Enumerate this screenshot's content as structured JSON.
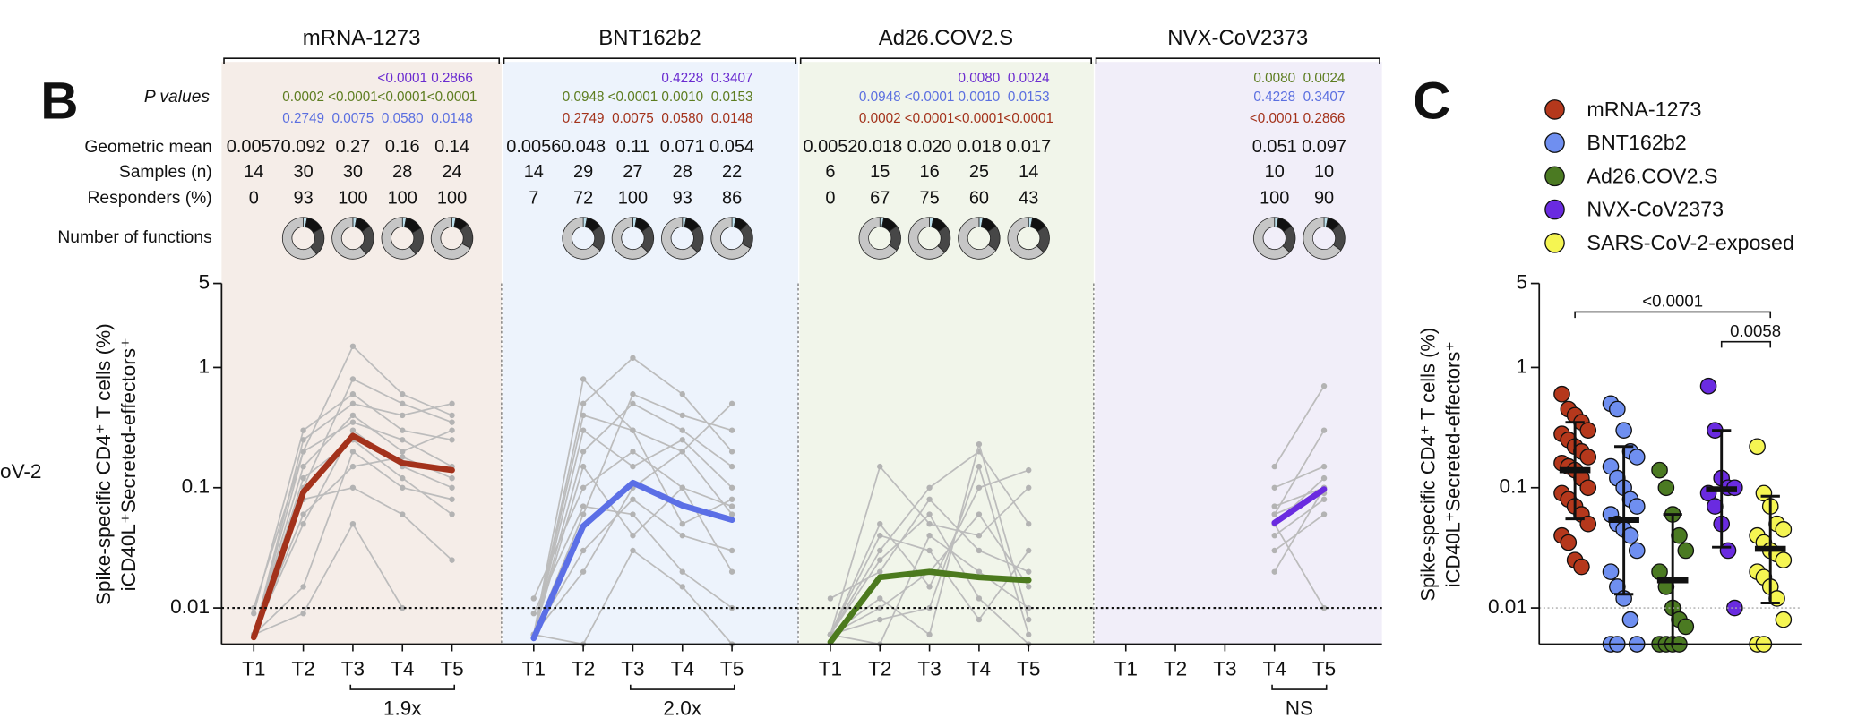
{
  "chart_data": [
    {
      "type": "line",
      "label": "B",
      "side_label": "oV-2",
      "log_y": true,
      "ylim": [
        0.005,
        5
      ],
      "yticks": [
        0.01,
        0.1,
        1,
        5
      ],
      "threshold": 0.01,
      "ylabel": [
        "Spike-specific CD4⁺ T cells (%)",
        "iCD40L⁺Secreted-effectors⁺"
      ],
      "categories": [
        "T1",
        "T2",
        "T3",
        "T4",
        "T5"
      ],
      "row_labels": {
        "p": "P values",
        "geomean": "Geometric mean",
        "samples": "Samples (n)",
        "responders": "Responders (%)",
        "functions": "Number of functions"
      },
      "donut_colors": [
        "#bfe2ee",
        "#111111",
        "#474747",
        "#c6c6c6"
      ],
      "groups": [
        {
          "name": "mRNA-1273",
          "color": "#a3321b",
          "bg": "#f5ede8",
          "geomean": {
            "values": [
              0.0057,
              0.092,
              0.27,
              0.16,
              0.14
            ],
            "value_labels": [
              "0.0057",
              "0.092",
              "0.27",
              "0.16",
              "0.14"
            ]
          },
          "samples": [
            14,
            30,
            30,
            28,
            24
          ],
          "responders": [
            0,
            93,
            100,
            100,
            100
          ],
          "p_values": [
            {
              "color": "#6a2bd0",
              "values": [
                null,
                null,
                null,
                "<0.0001",
                "0.2866"
              ]
            },
            {
              "color": "#5d7d20",
              "values": [
                null,
                "0.0002",
                "<0.0001",
                "<0.0001",
                "<0.0001"
              ]
            },
            {
              "color": "#5b6fe0",
              "values": [
                null,
                "0.2749",
                "0.0075",
                "0.0580",
                "0.0148"
              ]
            }
          ],
          "functions": [
            null,
            [
              3,
              14,
              22,
              61
            ],
            [
              3,
              12,
              24,
              61
            ],
            [
              3,
              14,
              22,
              61
            ],
            [
              3,
              10,
              20,
              67
            ]
          ],
          "fold": {
            "label": "1.9x",
            "from": 2,
            "to": 4
          },
          "donors": [
            [
              0.006,
              0.15,
              0.4,
              0.2,
              0.3
            ],
            [
              0.006,
              0.1,
              0.8,
              0.5,
              0.35
            ],
            [
              0.01,
              0.2,
              1.5,
              0.6,
              0.4
            ],
            [
              0.006,
              0.05,
              0.3,
              0.15,
              0.1
            ],
            [
              0.006,
              0.12,
              0.25,
              0.12,
              0.06
            ],
            [
              0.009,
              0.3,
              0.6,
              0.3,
              0.25
            ],
            [
              0.006,
              0.015,
              0.2,
              0.1,
              0.08
            ],
            [
              0.006,
              0.08,
              0.1,
              0.06,
              0.025
            ],
            [
              0.006,
              0.2,
              0.35,
              0.25,
              0.15
            ],
            [
              0.006,
              0.009,
              0.05,
              0.01,
              null
            ],
            [
              0.006,
              0.25,
              0.5,
              0.4,
              0.5
            ],
            [
              0.006,
              0.06,
              0.15,
              0.18,
              0.12
            ]
          ]
        },
        {
          "name": "BNT162b2",
          "color": "#5b6fe6",
          "bg": "#edf3fc",
          "geomean": {
            "values": [
              0.0056,
              0.048,
              0.11,
              0.071,
              0.054
            ],
            "value_labels": [
              "0.0056",
              "0.048",
              "0.11",
              "0.071",
              "0.054"
            ]
          },
          "samples": [
            14,
            29,
            27,
            28,
            22
          ],
          "responders": [
            7,
            72,
            100,
            93,
            86
          ],
          "p_values": [
            {
              "color": "#6a2bd0",
              "values": [
                null,
                null,
                null,
                "0.4228",
                "0.3407"
              ]
            },
            {
              "color": "#5d7d20",
              "values": [
                null,
                "0.0948",
                "<0.0001",
                "0.0010",
                "0.0153"
              ]
            },
            {
              "color": "#a3321b",
              "values": [
                null,
                "0.2749",
                "0.0075",
                "0.0580",
                "0.0148"
              ]
            }
          ],
          "functions": [
            null,
            [
              3,
              12,
              20,
              65
            ],
            [
              3,
              12,
              22,
              63
            ],
            [
              3,
              12,
              22,
              63
            ],
            [
              3,
              10,
              20,
              67
            ]
          ],
          "fold": {
            "label": "2.0x",
            "from": 2,
            "to": 4
          },
          "donors": [
            [
              0.006,
              0.8,
              0.3,
              0.2,
              0.5
            ],
            [
              0.006,
              0.5,
              1.2,
              0.6,
              0.2
            ],
            [
              0.012,
              0.1,
              0.2,
              0.1,
              0.07
            ],
            [
              0.006,
              0.03,
              0.08,
              0.04,
              0.03
            ],
            [
              0.006,
              0.2,
              0.5,
              0.3,
              0.15
            ],
            [
              0.009,
              0.07,
              0.06,
              0.02,
              0.01
            ],
            [
              0.006,
              0.3,
              0.15,
              0.25,
              0.1
            ],
            [
              0.006,
              0.005,
              0.03,
              0.015,
              0.005
            ],
            [
              0.006,
              0.4,
              0.3,
              0.05,
              0.08
            ],
            [
              0.006,
              0.06,
              0.6,
              0.4,
              0.3
            ],
            [
              0.006,
              0.15,
              0.04,
              0.1,
              0.02
            ],
            [
              0.006,
              0.02,
              0.1,
              0.2,
              0.06
            ]
          ]
        },
        {
          "name": "Ad26.COV2.S",
          "color": "#4c7a1e",
          "bg": "#f1f5ea",
          "geomean": {
            "values": [
              0.0052,
              0.018,
              0.02,
              0.018,
              0.017
            ],
            "value_labels": [
              "0.0052",
              "0.018",
              "0.020",
              "0.018",
              "0.017"
            ]
          },
          "samples": [
            6,
            15,
            16,
            25,
            14
          ],
          "responders": [
            0,
            67,
            75,
            60,
            43
          ],
          "p_values": [
            {
              "color": "#6a2bd0",
              "values": [
                null,
                null,
                null,
                "0.0080",
                "0.0024"
              ]
            },
            {
              "color": "#5b6fe0",
              "values": [
                null,
                "0.0948",
                "<0.0001",
                "0.0010",
                "0.0153"
              ]
            },
            {
              "color": "#a3321b",
              "values": [
                null,
                "0.0002",
                "<0.0001",
                "<0.0001",
                "<0.0001"
              ]
            }
          ],
          "functions": [
            null,
            [
              3,
              12,
              20,
              65
            ],
            [
              3,
              12,
              22,
              63
            ],
            [
              3,
              12,
              20,
              65
            ],
            [
              3,
              12,
              22,
              63
            ]
          ],
          "fold": null,
          "donors": [
            [
              0.006,
              0.15,
              0.05,
              0.04,
              0.1
            ],
            [
              0.006,
              0.03,
              0.1,
              0.2,
              0.05
            ],
            [
              0.006,
              0.01,
              0.02,
              0.06,
              0.015
            ],
            [
              0.006,
              0.005,
              0.04,
              0.02,
              0.01
            ],
            [
              0.006,
              0.05,
              0.015,
              0.1,
              0.14
            ],
            [
              0.012,
              0.02,
              0.08,
              0.03,
              0.02
            ],
            [
              0.006,
              0.008,
              0.01,
              0.15,
              0.006
            ],
            [
              0.006,
              0.04,
              0.03,
              0.008,
              0.03
            ],
            [
              0.006,
              0.012,
              0.006,
              0.23,
              0.008
            ],
            [
              0.006,
              0.025,
              0.06,
              0.012,
              0.005
            ]
          ]
        },
        {
          "name": "NVX-CoV2373",
          "color": "#6a2be0",
          "bg": "#f1eef9",
          "geomean": {
            "values": [
              null,
              null,
              null,
              0.051,
              0.097
            ],
            "value_labels": [
              null,
              null,
              null,
              "0.051",
              "0.097"
            ]
          },
          "samples": [
            null,
            null,
            null,
            10,
            10
          ],
          "responders": [
            null,
            null,
            null,
            100,
            90
          ],
          "p_values": [
            {
              "color": "#5d7d20",
              "values": [
                null,
                null,
                null,
                "0.0080",
                "0.0024"
              ]
            },
            {
              "color": "#5b6fe0",
              "values": [
                null,
                null,
                null,
                "0.4228",
                "0.3407"
              ]
            },
            {
              "color": "#a3321b",
              "values": [
                null,
                null,
                null,
                "<0.0001",
                "0.2866"
              ]
            }
          ],
          "functions": [
            null,
            null,
            null,
            [
              3,
              12,
              22,
              63
            ],
            [
              3,
              10,
              22,
              65
            ]
          ],
          "fold": {
            "label": "NS",
            "from": 3,
            "to": 4
          },
          "donors": [
            [
              null,
              null,
              null,
              0.06,
              0.3
            ],
            [
              null,
              null,
              null,
              0.05,
              0.12
            ],
            [
              null,
              null,
              null,
              0.15,
              0.7
            ],
            [
              null,
              null,
              null,
              0.02,
              0.1
            ],
            [
              null,
              null,
              null,
              0.04,
              0.08
            ],
            [
              null,
              null,
              null,
              0.07,
              0.1
            ],
            [
              null,
              null,
              null,
              0.05,
              0.01
            ],
            [
              null,
              null,
              null,
              0.1,
              0.15
            ],
            [
              null,
              null,
              null,
              0.03,
              0.06
            ],
            [
              null,
              null,
              null,
              0.06,
              0.09
            ]
          ]
        }
      ]
    },
    {
      "type": "scatter",
      "label": "C",
      "log_y": true,
      "ylim": [
        0.005,
        5
      ],
      "yticks": [
        0.01,
        0.1,
        1,
        5
      ],
      "threshold": 0.01,
      "ylabel": [
        "Spike-specific CD4⁺ T cells (%)",
        "iCD40L⁺Secreted-effectors⁺"
      ],
      "series": [
        {
          "name": "mRNA-1273",
          "color": "#b5381c",
          "mean": 0.14,
          "upper": 0.35,
          "lower": 0.055,
          "values": [
            0.6,
            0.45,
            0.4,
            0.35,
            0.3,
            0.28,
            0.25,
            0.22,
            0.2,
            0.18,
            0.16,
            0.15,
            0.14,
            0.12,
            0.1,
            0.09,
            0.08,
            0.07,
            0.06,
            0.05,
            0.04,
            0.035,
            0.025,
            0.022
          ]
        },
        {
          "name": "BNT162b2",
          "color": "#6f8ff0",
          "mean": 0.054,
          "upper": 0.22,
          "lower": 0.013,
          "values": [
            0.5,
            0.45,
            0.3,
            0.2,
            0.18,
            0.15,
            0.12,
            0.1,
            0.08,
            0.07,
            0.06,
            0.05,
            0.045,
            0.04,
            0.03,
            0.02,
            0.015,
            0.012,
            0.008,
            0.005,
            0.005,
            0.005
          ]
        },
        {
          "name": "Ad26.COV2.S",
          "color": "#4b7a22",
          "mean": 0.017,
          "upper": 0.06,
          "lower": 0.005,
          "values": [
            0.14,
            0.1,
            0.06,
            0.04,
            0.03,
            0.02,
            0.015,
            0.01,
            0.008,
            0.007,
            0.005,
            0.005,
            0.005,
            0.005
          ]
        },
        {
          "name": "NVX-CoV2373",
          "color": "#6a2be0",
          "mean": 0.097,
          "upper": 0.3,
          "lower": 0.032,
          "values": [
            0.7,
            0.3,
            0.12,
            0.1,
            0.1,
            0.09,
            0.07,
            0.05,
            0.03,
            0.01
          ]
        },
        {
          "name": "SARS-CoV-2-exposed",
          "color": "#f5f552",
          "mean": 0.031,
          "upper": 0.085,
          "lower": 0.011,
          "values": [
            0.22,
            0.09,
            0.07,
            0.05,
            0.045,
            0.04,
            0.035,
            0.03,
            0.028,
            0.025,
            0.02,
            0.018,
            0.015,
            0.012,
            0.008,
            0.005,
            0.005
          ]
        }
      ],
      "comparisons": [
        {
          "from": 0,
          "to": 4,
          "label": "<0.0001"
        },
        {
          "from": 3,
          "to": 4,
          "label": "0.0058"
        }
      ]
    }
  ]
}
